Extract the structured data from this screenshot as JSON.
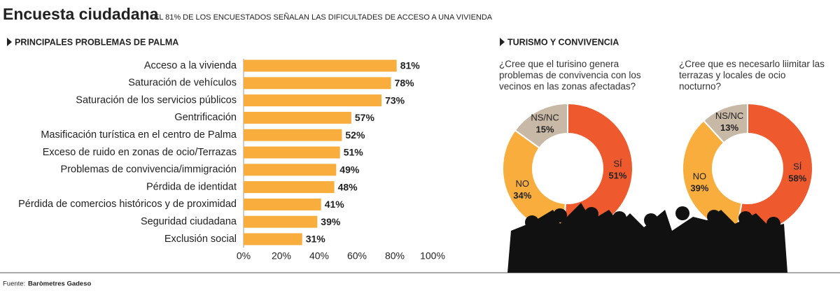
{
  "header": {
    "title": "Encuesta ciudadana",
    "subtitle": "EL 81% DE LOS ENCUESTADOS SEÑALAN LAS DIFICULTADES DE ACCESO A UNA VIVIENDA"
  },
  "section_title": "TURISMO Y CONVIVENCIA",
  "source_label": "Fuente:",
  "source": "Baròmetres Gadeso",
  "chart_data": [
    {
      "type": "bar",
      "orientation": "horizontal",
      "title": "PRINCIPALES PROBLEMAS DE PALMA",
      "categories": [
        "Acceso a la vivienda",
        "Saturación de vehículos",
        "Saturación de los servicios públicos",
        "Gentrificación",
        "Masificación turística en el centro de Palma",
        "Exceso de ruido en zonas de ocio/Terrazas",
        "Problemas de convivencia/immigración",
        "Pérdida de identidat",
        "Pérdida de comercios históricos y de proximidad",
        "Seguridad ciudadana",
        "Exclusión social"
      ],
      "values": [
        81,
        78,
        73,
        57,
        52,
        51,
        49,
        48,
        41,
        39,
        31
      ],
      "value_labels": [
        "81%",
        "78%",
        "73%",
        "57%",
        "52%",
        "51%",
        "49%",
        "48%",
        "41%",
        "39%",
        "31%"
      ],
      "color": "#f8ad3d",
      "xlim": [
        0,
        100
      ],
      "xticks": [
        {
          "value": 0,
          "label": "0%"
        },
        {
          "value": 20,
          "label": "20%"
        },
        {
          "value": 40,
          "label": "40%"
        },
        {
          "value": 60,
          "label": "60%"
        },
        {
          "value": 80,
          "label": "80%"
        },
        {
          "value": 100,
          "label": "100%"
        }
      ],
      "grid": false
    },
    {
      "type": "pie",
      "donut": true,
      "title": "¿Cree que el turisino genera problemas de convivencia con los vecinos en las zonas afectadas?",
      "categories": [
        "SÍ",
        "NO",
        "NS/NC"
      ],
      "values": [
        51,
        34,
        15
      ],
      "value_labels": [
        "51%",
        "34%",
        "15%"
      ],
      "colors": [
        "#ee5a2d",
        "#f8ad3d",
        "#c8b9a6"
      ]
    },
    {
      "type": "pie",
      "donut": true,
      "title": "¿Cree que es necesarlo liimitar las terrazas y locales de ocio nocturno?",
      "categories": [
        "SÍ",
        "NO",
        "NS/NC"
      ],
      "values": [
        58,
        39,
        13
      ],
      "value_labels": [
        "58%",
        "39%",
        "13%"
      ],
      "colors": [
        "#ee5a2d",
        "#f8ad3d",
        "#c8b9a6"
      ]
    }
  ]
}
